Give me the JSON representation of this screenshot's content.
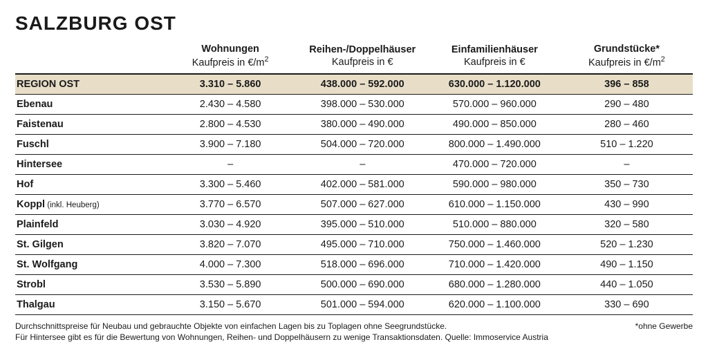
{
  "title": "SALZBURG OST",
  "table": {
    "columns": [
      {
        "title": "",
        "sub": ""
      },
      {
        "title": "Wohnungen",
        "sub": "Kaufpreis in €/m²"
      },
      {
        "title": "Reihen-/Doppelhäuser",
        "sub": "Kaufpreis in €"
      },
      {
        "title": "Einfamilienhäuser",
        "sub": "Kaufpreis in €"
      },
      {
        "title": "Grundstücke*",
        "sub": "Kaufpreis in €/m²"
      }
    ],
    "summary": {
      "label": "REGION OST",
      "values": [
        "3.310 – 5.860",
        "438.000 – 592.000",
        "630.000 – 1.120.000",
        "396 – 858"
      ]
    },
    "rows": [
      {
        "label": "Ebenau",
        "sublabel": "",
        "values": [
          "2.430 – 4.580",
          "398.000 – 530.000",
          "570.000 – 960.000",
          "290 – 480"
        ]
      },
      {
        "label": "Faistenau",
        "sublabel": "",
        "values": [
          "2.800 – 4.530",
          "380.000 – 490.000",
          "490.000 – 850.000",
          "280 – 460"
        ]
      },
      {
        "label": "Fuschl",
        "sublabel": "",
        "values": [
          "3.900 – 7.180",
          "504.000 – 720.000",
          "800.000 – 1.490.000",
          "510 – 1.220"
        ]
      },
      {
        "label": "Hintersee",
        "sublabel": "",
        "values": [
          "–",
          "–",
          "470.000 – 720.000",
          "–"
        ]
      },
      {
        "label": "Hof",
        "sublabel": "",
        "values": [
          "3.300 – 5.460",
          "402.000 – 581.000",
          "590.000 – 980.000",
          "350 – 730"
        ]
      },
      {
        "label": "Koppl",
        "sublabel": " (inkl. Heuberg)",
        "values": [
          "3.770 – 6.570",
          "507.000 – 627.000",
          "610.000 – 1.150.000",
          "430 – 990"
        ]
      },
      {
        "label": "Plainfeld",
        "sublabel": "",
        "values": [
          "3.030 – 4.920",
          "395.000 – 510.000",
          "510.000 – 880.000",
          "320 – 580"
        ]
      },
      {
        "label": "St. Gilgen",
        "sublabel": "",
        "values": [
          "3.820 – 7.070",
          "495.000 – 710.000",
          "750.000 – 1.460.000",
          "520 – 1.230"
        ]
      },
      {
        "label": "St. Wolfgang",
        "sublabel": "",
        "values": [
          "4.000 – 7.300",
          "518.000 – 696.000",
          "710.000 – 1.420.000",
          "490 – 1.150"
        ]
      },
      {
        "label": "Strobl",
        "sublabel": "",
        "values": [
          "3.530 – 5.890",
          "500.000 – 690.000",
          "680.000 – 1.280.000",
          "440 – 1.050"
        ]
      },
      {
        "label": "Thalgau",
        "sublabel": "",
        "values": [
          "3.150 – 5.670",
          "501.000 – 594.000",
          "620.000 – 1.100.000",
          "330 – 690"
        ]
      }
    ]
  },
  "footer": {
    "left_line1": "Durchschnittspreise für Neubau und gebrauchte Objekte von einfachen Lagen bis zu Toplagen ohne Seegrundstücke.",
    "left_line2": "Für Hintersee gibt es für die Bewertung von Wohnungen, Reihen- und Doppelhäusern zu wenige Transaktionsdaten. Quelle: Immoservice Austria",
    "right": "*ohne Gewerbe"
  },
  "style": {
    "background": "#ffffff",
    "text_color": "#1a1a1a",
    "summary_row_bg": "#e8dec8",
    "border_color": "#1a1a1a",
    "title_fontsize": 28,
    "body_fontsize": 14.5,
    "footer_fontsize": 12
  }
}
